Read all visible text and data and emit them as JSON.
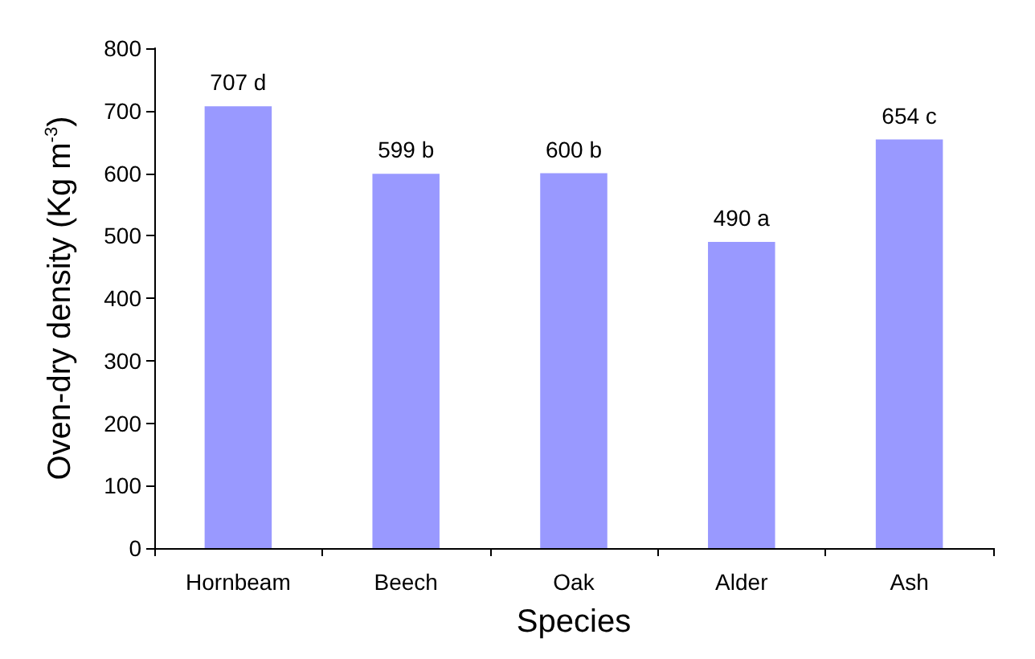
{
  "chart_data": {
    "type": "bar",
    "xlabel": "Species",
    "ylabel": "Oven-dry density (Kg m$^{-3}$)",
    "categories": [
      "Hornbeam",
      "Beech",
      "Oak",
      "Alder",
      "Ash"
    ],
    "values": [
      707,
      599,
      600,
      490,
      654
    ],
    "value_labels": [
      "707 d",
      "599 b",
      "600 b",
      "490 a",
      "654 c"
    ],
    "color": "#9999ff",
    "ylim": [
      0,
      800
    ],
    "yticks": [
      0,
      100,
      200,
      300,
      400,
      500,
      600,
      700,
      800
    ],
    "grid": false
  }
}
